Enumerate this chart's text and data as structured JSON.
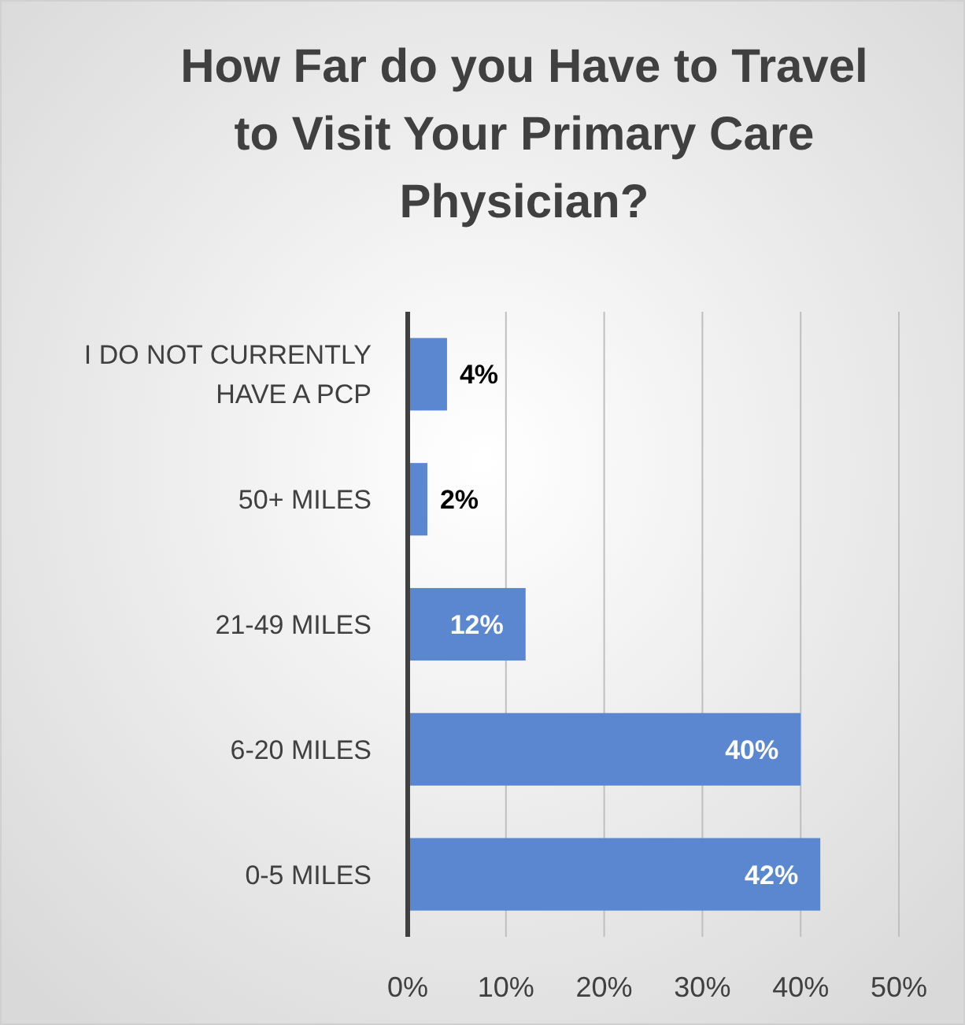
{
  "chart_data": {
    "type": "bar",
    "orientation": "horizontal",
    "title": "How Far do you Have to Travel to Visit Your Primary Care Physician?",
    "categories": [
      "I DO NOT CURRENTLY HAVE A PCP",
      "50+ MILES",
      "21-49 MILES",
      "6-20 MILES",
      "0-5 MILES"
    ],
    "values": [
      4,
      2,
      12,
      40,
      42
    ],
    "value_labels": [
      "4%",
      "2%",
      "12%",
      "40%",
      "42%"
    ],
    "color": "#5b87d0",
    "xlim": [
      0,
      50
    ],
    "xticks": [
      {
        "value": 0,
        "label": "0%"
      },
      {
        "value": 10,
        "label": "10%"
      },
      {
        "value": 20,
        "label": "20%"
      },
      {
        "value": 30,
        "label": "30%"
      },
      {
        "value": 40,
        "label": "40%"
      },
      {
        "value": 50,
        "label": "50%"
      }
    ],
    "grid": "x"
  }
}
